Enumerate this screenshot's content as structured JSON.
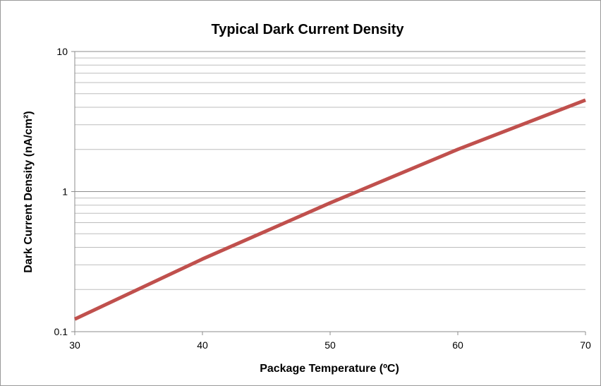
{
  "chart_data": {
    "type": "line",
    "title": "Typical Dark Current Density",
    "xlabel": "Package Temperature (ºC)",
    "ylabel": "Dark Current Density (nA/cm²)",
    "xlim": [
      30,
      70
    ],
    "ylim": [
      0.1,
      10
    ],
    "y_scale": "log",
    "x_ticks": [
      30,
      40,
      50,
      60,
      70
    ],
    "x_tick_labels": [
      "30",
      "40",
      "50",
      "60",
      "70"
    ],
    "y_ticks": [
      0.1,
      1,
      10
    ],
    "y_tick_labels": [
      "0.1",
      "1",
      "10"
    ],
    "grid": "horizontal major and minor",
    "legend": "none",
    "series": [
      {
        "color": "#c0504d",
        "x": [
          30,
          40,
          50,
          60,
          70
        ],
        "y": [
          0.123,
          0.33,
          0.83,
          2.0,
          4.5
        ]
      }
    ]
  }
}
